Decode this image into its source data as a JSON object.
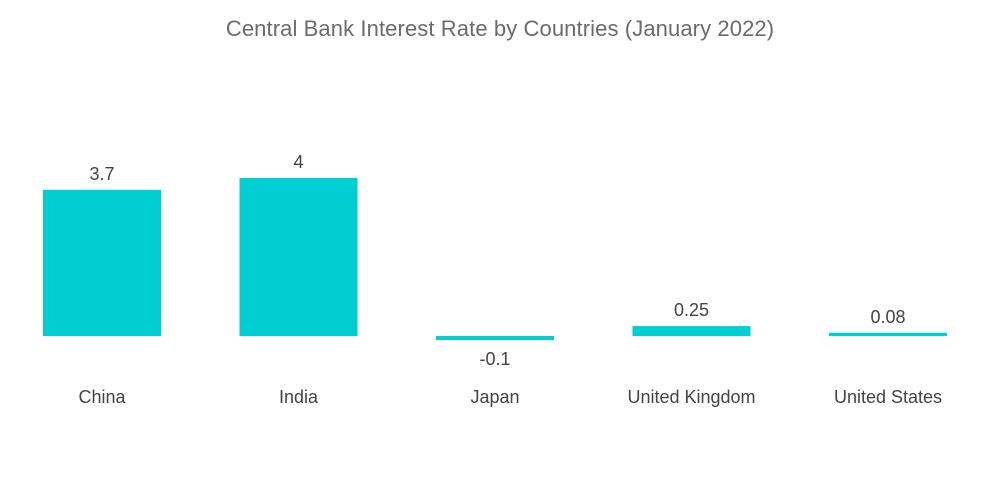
{
  "chart_data": {
    "type": "bar",
    "title": "Central Bank Interest Rate by Countries (January 2022)",
    "categories": [
      "China",
      "India",
      "Japan",
      "United Kingdom",
      "United States"
    ],
    "values": [
      3.7,
      4,
      -0.1,
      0.25,
      0.08
    ],
    "value_labels": [
      "3.7",
      "4",
      "-0.1",
      "0.25",
      "0.08"
    ],
    "xlabel": "",
    "ylabel": "",
    "ylim": [
      -0.1,
      4
    ],
    "grid": false,
    "bar_color": "#00CED1"
  }
}
